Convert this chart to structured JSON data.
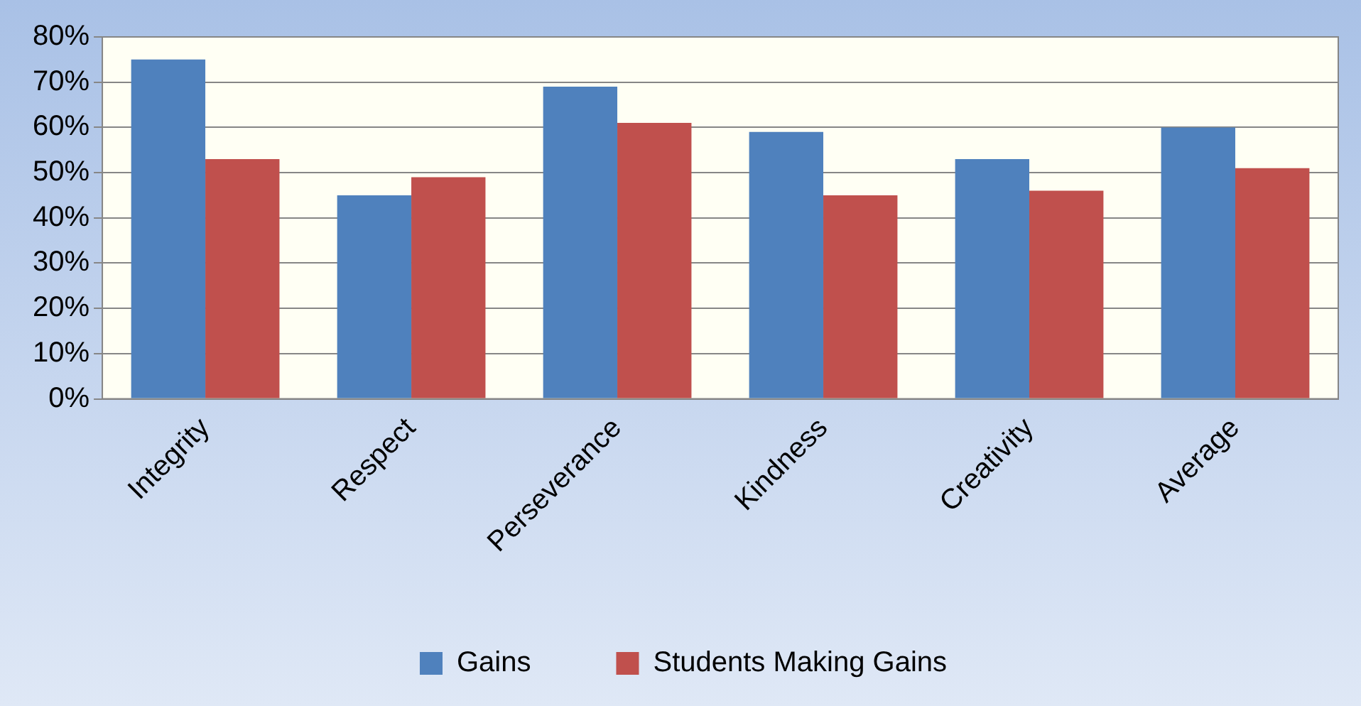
{
  "chart_data": {
    "type": "bar",
    "categories": [
      "Integrity",
      "Respect",
      "Perseverance",
      "Kindness",
      "Creativity",
      "Average"
    ],
    "series": [
      {
        "name": "Gains",
        "color": "#4f81bd",
        "values": [
          75,
          45,
          69,
          59,
          53,
          60
        ]
      },
      {
        "name": "Students Making Gains",
        "color": "#c0504d",
        "values": [
          53,
          49,
          61,
          45,
          46,
          51
        ]
      }
    ],
    "ylim": [
      0,
      80
    ],
    "yticks": [
      {
        "value": 0,
        "label": "0%"
      },
      {
        "value": 10,
        "label": "10%"
      },
      {
        "value": 20,
        "label": "20%"
      },
      {
        "value": 30,
        "label": "30%"
      },
      {
        "value": 40,
        "label": "40%"
      },
      {
        "value": 50,
        "label": "50%"
      },
      {
        "value": 60,
        "label": "60%"
      },
      {
        "value": 70,
        "label": "70%"
      },
      {
        "value": 80,
        "label": "80%"
      }
    ],
    "grid": "y",
    "legend": "bottom"
  }
}
